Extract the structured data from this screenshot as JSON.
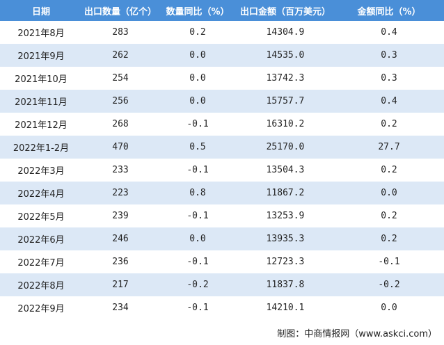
{
  "table": {
    "header": [
      "日期",
      "出口数量（亿个）",
      "数量同比（%）",
      "出口金额（百万美元）",
      "金额同比（%）"
    ],
    "rows": [
      [
        "2021年8月",
        "283",
        "0.2",
        "14304.9",
        "0.4"
      ],
      [
        "2021年9月",
        "262",
        "0.0",
        "14535.0",
        "0.3"
      ],
      [
        "2021年10月",
        "254",
        "0.0",
        "13742.3",
        "0.3"
      ],
      [
        "2021年11月",
        "256",
        "0.0",
        "15757.7",
        "0.4"
      ],
      [
        "2021年12月",
        "268",
        "-0.1",
        "16310.2",
        "0.2"
      ],
      [
        "2022年1-2月",
        "470",
        "0.5",
        "25170.0",
        "27.7"
      ],
      [
        "2022年3月",
        "233",
        "-0.1",
        "13504.3",
        "0.2"
      ],
      [
        "2022年4月",
        "223",
        "0.8",
        "11867.2",
        "0.0"
      ],
      [
        "2022年5月",
        "239",
        "-0.1",
        "13253.9",
        "0.2"
      ],
      [
        "2022年6月",
        "246",
        "0.0",
        "13935.3",
        "0.2"
      ],
      [
        "2022年7月",
        "236",
        "-0.1",
        "12723.3",
        "-0.1"
      ],
      [
        "2022年8月",
        "217",
        "-0.2",
        "11837.8",
        "-0.2"
      ],
      [
        "2022年9月",
        "234",
        "-0.1",
        "14210.1",
        "0.0"
      ]
    ]
  },
  "footer": {
    "source": "制图：中商情报网（www.askci.com）"
  }
}
